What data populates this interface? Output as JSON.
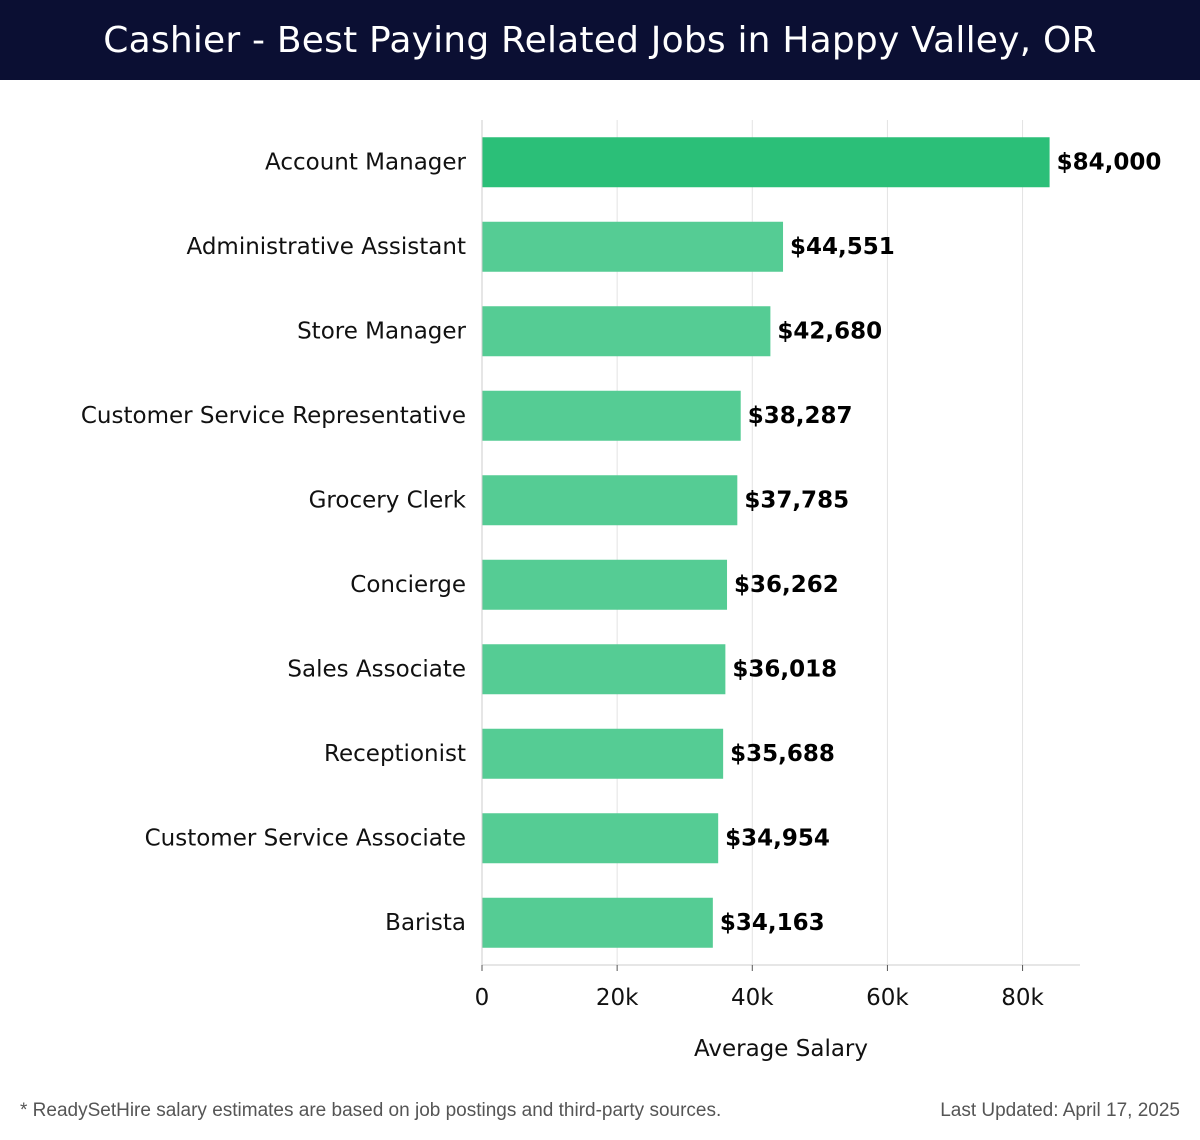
{
  "header": {
    "title": "Cashier - Best Paying Related Jobs in Happy Valley, OR"
  },
  "footer": {
    "note": "* ReadySetHire salary estimates are based on job postings and third-party sources.",
    "updated": "Last Updated: April 17, 2025"
  },
  "colors": {
    "header_bg": "#0b0f33",
    "top_bar": "#2bbf78",
    "bar": "#55cc94",
    "grid": "#e3e3e3",
    "text": "#111111"
  },
  "chart_data": {
    "type": "bar",
    "orientation": "horizontal",
    "title": "Cashier - Best Paying Related Jobs in Happy Valley, OR",
    "xlabel": "Average Salary",
    "ylabel": "",
    "xlim": [
      0,
      88500
    ],
    "grid": true,
    "categories": [
      "Account Manager",
      "Administrative Assistant",
      "Store Manager",
      "Customer Service Representative",
      "Grocery Clerk",
      "Concierge",
      "Sales Associate",
      "Receptionist",
      "Customer Service Associate",
      "Barista"
    ],
    "values": [
      84000,
      44551,
      42680,
      38287,
      37785,
      36262,
      36018,
      35688,
      34954,
      34163
    ],
    "value_labels": [
      "$84,000",
      "$44,551",
      "$42,680",
      "$38,287",
      "$37,785",
      "$36,262",
      "$36,018",
      "$35,688",
      "$34,954",
      "$34,163"
    ],
    "ticks": [
      0,
      20000,
      40000,
      60000,
      80000
    ],
    "tick_labels": [
      "0",
      "20k",
      "40k",
      "60k",
      "80k"
    ]
  }
}
